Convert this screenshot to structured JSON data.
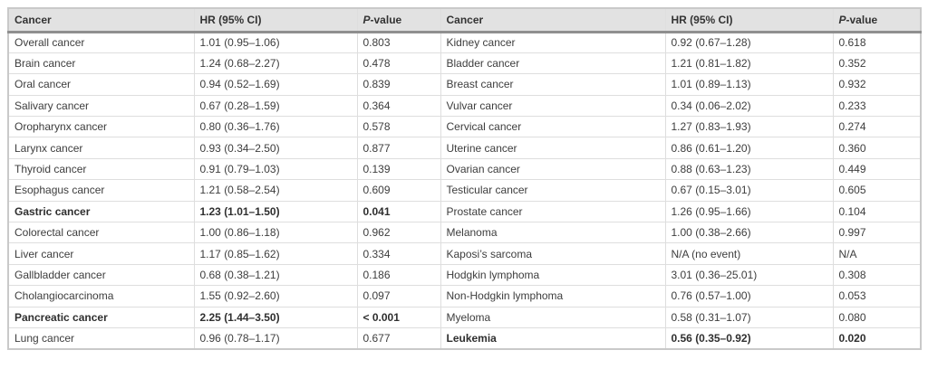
{
  "colors": {
    "header_bg": "#e2e2e2",
    "header_text": "#333333",
    "body_text": "#3d3d3d",
    "grid_line": "#dedede",
    "outer_border": "#c9c9c9",
    "header_rule": "#8f8f8f"
  },
  "table": {
    "headers": {
      "cancer": "Cancer",
      "hr": "HR (95% CI)",
      "p_italic": "P",
      "p_rest": "-value"
    },
    "rows": [
      {
        "left": {
          "cancer": "Overall cancer",
          "hr": "1.01 (0.95–1.06)",
          "p": "0.803",
          "bold": false
        },
        "right": {
          "cancer": "Kidney cancer",
          "hr": "0.92 (0.67–1.28)",
          "p": "0.618",
          "bold": false
        }
      },
      {
        "left": {
          "cancer": "Brain cancer",
          "hr": "1.24 (0.68–2.27)",
          "p": "0.478",
          "bold": false
        },
        "right": {
          "cancer": "Bladder cancer",
          "hr": "1.21 (0.81–1.82)",
          "p": "0.352",
          "bold": false
        }
      },
      {
        "left": {
          "cancer": "Oral cancer",
          "hr": "0.94 (0.52–1.69)",
          "p": "0.839",
          "bold": false
        },
        "right": {
          "cancer": "Breast cancer",
          "hr": "1.01 (0.89–1.13)",
          "p": "0.932",
          "bold": false
        }
      },
      {
        "left": {
          "cancer": "Salivary cancer",
          "hr": "0.67 (0.28–1.59)",
          "p": "0.364",
          "bold": false
        },
        "right": {
          "cancer": "Vulvar cancer",
          "hr": "0.34 (0.06–2.02)",
          "p": "0.233",
          "bold": false
        }
      },
      {
        "left": {
          "cancer": "Oropharynx cancer",
          "hr": "0.80 (0.36–1.76)",
          "p": "0.578",
          "bold": false
        },
        "right": {
          "cancer": "Cervical cancer",
          "hr": "1.27 (0.83–1.93)",
          "p": "0.274",
          "bold": false
        }
      },
      {
        "left": {
          "cancer": "Larynx cancer",
          "hr": "0.93 (0.34–2.50)",
          "p": "0.877",
          "bold": false
        },
        "right": {
          "cancer": "Uterine cancer",
          "hr": "0.86 (0.61–1.20)",
          "p": "0.360",
          "bold": false
        }
      },
      {
        "left": {
          "cancer": "Thyroid cancer",
          "hr": "0.91 (0.79–1.03)",
          "p": "0.139",
          "bold": false
        },
        "right": {
          "cancer": "Ovarian cancer",
          "hr": "0.88 (0.63–1.23)",
          "p": "0.449",
          "bold": false
        }
      },
      {
        "left": {
          "cancer": "Esophagus cancer",
          "hr": "1.21 (0.58–2.54)",
          "p": "0.609",
          "bold": false
        },
        "right": {
          "cancer": "Testicular cancer",
          "hr": "0.67 (0.15–3.01)",
          "p": "0.605",
          "bold": false
        }
      },
      {
        "left": {
          "cancer": "Gastric cancer",
          "hr": "1.23 (1.01–1.50)",
          "p": "0.041",
          "bold": true
        },
        "right": {
          "cancer": "Prostate cancer",
          "hr": "1.26 (0.95–1.66)",
          "p": "0.104",
          "bold": false
        }
      },
      {
        "left": {
          "cancer": "Colorectal cancer",
          "hr": "1.00 (0.86–1.18)",
          "p": "0.962",
          "bold": false
        },
        "right": {
          "cancer": "Melanoma",
          "hr": "1.00 (0.38–2.66)",
          "p": "0.997",
          "bold": false
        }
      },
      {
        "left": {
          "cancer": "Liver cancer",
          "hr": "1.17 (0.85–1.62)",
          "p": "0.334",
          "bold": false
        },
        "right": {
          "cancer": "Kaposi’s sarcoma",
          "hr": "N/A (no event)",
          "p": "N/A",
          "bold": false
        }
      },
      {
        "left": {
          "cancer": "Gallbladder cancer",
          "hr": "0.68 (0.38–1.21)",
          "p": "0.186",
          "bold": false
        },
        "right": {
          "cancer": "Hodgkin lymphoma",
          "hr": "3.01 (0.36–25.01)",
          "p": "0.308",
          "bold": false
        }
      },
      {
        "left": {
          "cancer": "Cholangiocarcinoma",
          "hr": "1.55 (0.92–2.60)",
          "p": "0.097",
          "bold": false
        },
        "right": {
          "cancer": "Non-Hodgkin lymphoma",
          "hr": "0.76 (0.57–1.00)",
          "p": "0.053",
          "bold": false
        }
      },
      {
        "left": {
          "cancer": "Pancreatic cancer",
          "hr": "2.25 (1.44–3.50)",
          "p": "< 0.001",
          "bold": true
        },
        "right": {
          "cancer": "Myeloma",
          "hr": "0.58 (0.31–1.07)",
          "p": "0.080",
          "bold": false
        }
      },
      {
        "left": {
          "cancer": "Lung cancer",
          "hr": "0.96 (0.78–1.17)",
          "p": "0.677",
          "bold": false
        },
        "right": {
          "cancer": "Leukemia",
          "hr": "0.56 (0.35–0.92)",
          "p": "0.020",
          "bold": true
        }
      }
    ]
  }
}
